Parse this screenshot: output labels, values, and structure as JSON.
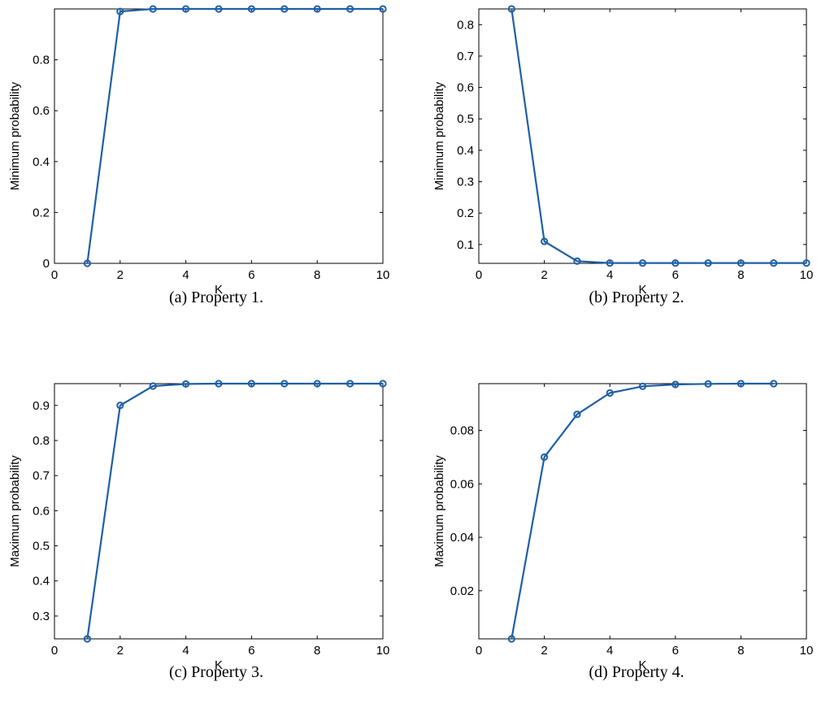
{
  "chart_data": [
    {
      "type": "line",
      "caption": "(a) Property 1.",
      "xlabel": "K",
      "ylabel": "Minimum probability",
      "xlim": [
        0,
        10
      ],
      "ylim": [
        0,
        1.0
      ],
      "xticks": [
        0,
        2,
        4,
        6,
        8,
        10
      ],
      "yticks": [
        0,
        0.2,
        0.4,
        0.6,
        0.8
      ],
      "ytick_labels": [
        "0",
        "0.2",
        "0.4",
        "0.6",
        "0.8"
      ],
      "color": "#1f5fa6",
      "x": [
        1,
        2,
        3,
        4,
        5,
        6,
        7,
        8,
        9,
        10
      ],
      "y": [
        0,
        0.99,
        1.0,
        1.0,
        1.0,
        1.0,
        1.0,
        1.0,
        1.0,
        1.0
      ]
    },
    {
      "type": "line",
      "caption": "(b) Property 2.",
      "xlabel": "K",
      "ylabel": "Minimum probability",
      "xlim": [
        0,
        10
      ],
      "ylim": [
        0.04,
        0.85
      ],
      "xticks": [
        0,
        2,
        4,
        6,
        8,
        10
      ],
      "yticks": [
        0.1,
        0.2,
        0.3,
        0.4,
        0.5,
        0.6,
        0.7,
        0.8
      ],
      "ytick_labels": [
        "0.1",
        "0.2",
        "0.3",
        "0.4",
        "0.5",
        "0.6",
        "0.7",
        "0.8"
      ],
      "color": "#1f5fa6",
      "x": [
        1,
        2,
        3,
        4,
        5,
        6,
        7,
        8,
        9,
        10
      ],
      "y": [
        0.85,
        0.11,
        0.047,
        0.041,
        0.041,
        0.041,
        0.041,
        0.041,
        0.041,
        0.041
      ]
    },
    {
      "type": "line",
      "caption": "(c) Property 3.",
      "xlabel": "K",
      "ylabel": "Maximum probability",
      "xlim": [
        0,
        10
      ],
      "ylim": [
        0.235,
        0.962
      ],
      "xticks": [
        0,
        2,
        4,
        6,
        8,
        10
      ],
      "yticks": [
        0.3,
        0.4,
        0.5,
        0.6,
        0.7,
        0.8,
        0.9
      ],
      "ytick_labels": [
        "0.3",
        "0.4",
        "0.5",
        "0.6",
        "0.7",
        "0.8",
        "0.9"
      ],
      "color": "#1f5fa6",
      "x": [
        1,
        2,
        3,
        4,
        5,
        6,
        7,
        8,
        9,
        10
      ],
      "y": [
        0.235,
        0.9,
        0.955,
        0.961,
        0.962,
        0.962,
        0.962,
        0.962,
        0.962,
        0.962
      ]
    },
    {
      "type": "line",
      "caption": "(d) Property 4.",
      "xlabel": "K",
      "ylabel": "Maximum probability",
      "xlim": [
        0,
        10
      ],
      "ylim": [
        0.002,
        0.0975
      ],
      "xticks": [
        0,
        2,
        4,
        6,
        8,
        10
      ],
      "yticks": [
        0.02,
        0.04,
        0.06,
        0.08
      ],
      "ytick_labels": [
        "0.02",
        "0.04",
        "0.06",
        "0.08"
      ],
      "color": "#1f5fa6",
      "x": [
        1,
        2,
        3,
        4,
        5,
        6,
        7,
        8,
        9
      ],
      "y": [
        0.002,
        0.07,
        0.086,
        0.094,
        0.0965,
        0.0972,
        0.0974,
        0.0975,
        0.0975
      ]
    }
  ]
}
